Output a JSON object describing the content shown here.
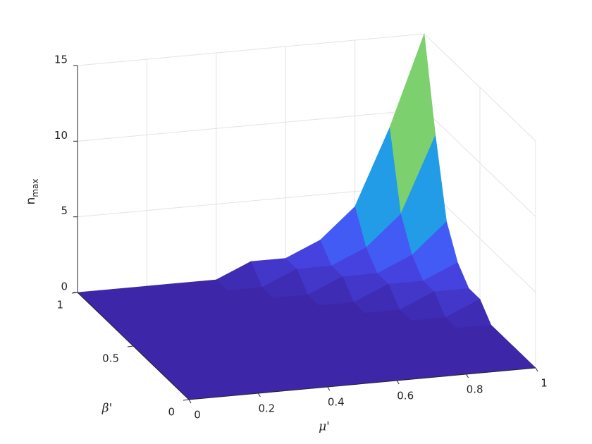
{
  "chart_data": {
    "type": "surface3d",
    "xlabel": "μ'",
    "ylabel": "β'",
    "zlabel": {
      "text": "n",
      "subscript": "max"
    },
    "x": [
      0,
      0.1,
      0.2,
      0.3,
      0.4,
      0.5,
      0.6,
      0.7,
      0.8,
      0.9,
      1
    ],
    "y": [
      0,
      0.1,
      0.2,
      0.3,
      0.4,
      0.5,
      0.6,
      0.7,
      0.8,
      0.9,
      1
    ],
    "z": [
      [
        0,
        0,
        0,
        0,
        0,
        0,
        0,
        0,
        0,
        0,
        0
      ],
      [
        0,
        0,
        0,
        0,
        0,
        0,
        0,
        0,
        0,
        0,
        0
      ],
      [
        0,
        0,
        0,
        0,
        0,
        0,
        0,
        0,
        0,
        0,
        0
      ],
      [
        0,
        0,
        0,
        0,
        0,
        0,
        0,
        0,
        0,
        0,
        0
      ],
      [
        0,
        0,
        0,
        0,
        0,
        0,
        0,
        0,
        0,
        0,
        0
      ],
      [
        0,
        0,
        0,
        0,
        0,
        0,
        0,
        0,
        0,
        0,
        1
      ],
      [
        0,
        0,
        0,
        0,
        0,
        0,
        0,
        0,
        0,
        1,
        1
      ],
      [
        0,
        0,
        0,
        0,
        0,
        0,
        0,
        0,
        1,
        1,
        2
      ],
      [
        0,
        0,
        0,
        0,
        0,
        0,
        0,
        1,
        1,
        2,
        4
      ],
      [
        0,
        0,
        0,
        0,
        0,
        0,
        1,
        1,
        2,
        4,
        9
      ],
      [
        0,
        0,
        0,
        0,
        0,
        1,
        1,
        2,
        4,
        9,
        15
      ]
    ],
    "xlim": [
      0,
      1
    ],
    "ylim": [
      0,
      1
    ],
    "zlim": [
      0,
      15
    ],
    "xticks": [
      0,
      0.2,
      0.4,
      0.6,
      0.8,
      1
    ],
    "yticks": [
      0,
      0.5,
      1
    ],
    "zticks": [
      0,
      5,
      10,
      15
    ],
    "grid": true,
    "colormap": "parula"
  }
}
